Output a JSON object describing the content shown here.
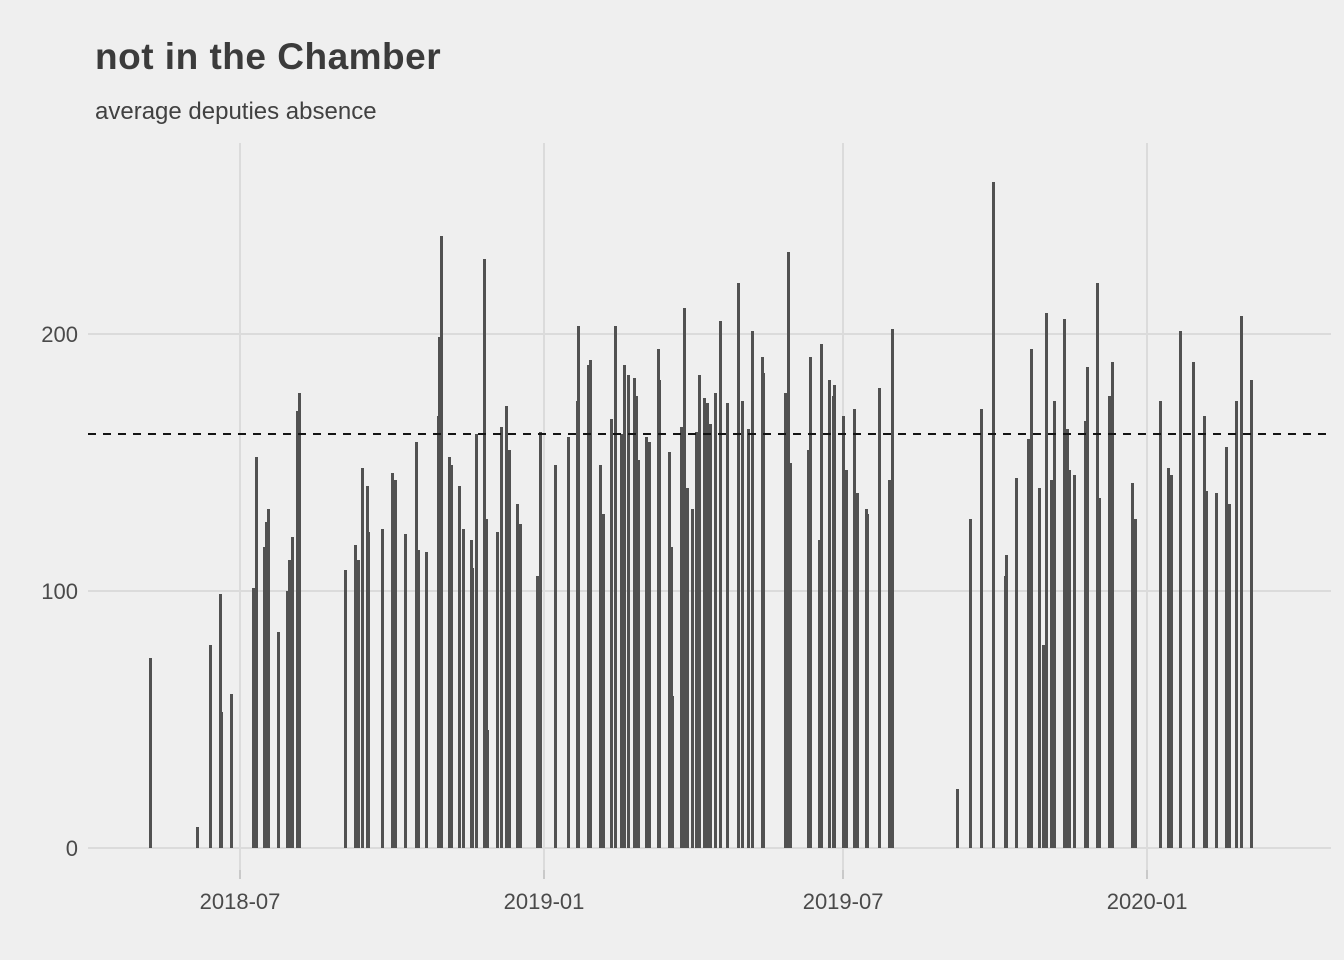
{
  "title": "not in the Chamber",
  "subtitle": "average deputies absence",
  "colors": {
    "background": "#efefef",
    "bar": "#515151",
    "gridline": "#dbdbdb",
    "tick": "#c9c9c9",
    "reference_line": "#141414",
    "title_text": "#3b3b3b",
    "axis_text": "#4a4a4a"
  },
  "chart_data": {
    "type": "bar",
    "title": "not in the Chamber",
    "subtitle": "average deputies absence",
    "xlabel": "",
    "ylabel": "",
    "grid": true,
    "legend": false,
    "ylim": [
      0,
      274
    ],
    "x_ticks": [
      {
        "label": "2018-07",
        "date": "2018-07-01"
      },
      {
        "label": "2019-01",
        "date": "2019-01-01"
      },
      {
        "label": "2019-07",
        "date": "2019-07-01"
      },
      {
        "label": "2020-01",
        "date": "2020-01-01"
      }
    ],
    "y_ticks": [
      {
        "label": "0",
        "value": 0
      },
      {
        "label": "100",
        "value": 100
      },
      {
        "label": "200",
        "value": 200
      }
    ],
    "reference_line": {
      "style": "dashed",
      "value": 161
    },
    "points": [
      [
        "2018-05-08",
        74
      ],
      [
        "2018-06-05",
        8
      ],
      [
        "2018-06-13",
        79
      ],
      [
        "2018-06-19",
        99
      ],
      [
        "2018-06-20",
        53
      ],
      [
        "2018-06-26",
        60
      ],
      [
        "2018-07-09",
        101
      ],
      [
        "2018-07-11",
        152
      ],
      [
        "2018-07-16",
        117
      ],
      [
        "2018-07-17",
        127
      ],
      [
        "2018-07-18",
        132
      ],
      [
        "2018-07-24",
        84
      ],
      [
        "2018-07-30",
        100
      ],
      [
        "2018-07-31",
        112
      ],
      [
        "2018-08-02",
        121
      ],
      [
        "2018-08-05",
        170
      ],
      [
        "2018-08-06",
        177
      ],
      [
        "2018-09-03",
        108
      ],
      [
        "2018-09-09",
        118
      ],
      [
        "2018-09-11",
        112
      ],
      [
        "2018-09-13",
        148
      ],
      [
        "2018-09-16",
        141
      ],
      [
        "2018-09-17",
        123
      ],
      [
        "2018-09-25",
        124
      ],
      [
        "2018-10-01",
        146
      ],
      [
        "2018-10-03",
        143
      ],
      [
        "2018-10-09",
        122
      ],
      [
        "2018-10-16",
        158
      ],
      [
        "2018-10-17",
        116
      ],
      [
        "2018-10-22",
        115
      ],
      [
        "2018-10-29",
        168
      ],
      [
        "2018-10-30",
        199
      ],
      [
        "2018-10-31",
        238
      ],
      [
        "2018-11-05",
        152
      ],
      [
        "2018-11-06",
        149
      ],
      [
        "2018-11-11",
        141
      ],
      [
        "2018-11-13",
        124
      ],
      [
        "2018-11-18",
        120
      ],
      [
        "2018-11-19",
        109
      ],
      [
        "2018-11-21",
        161
      ],
      [
        "2018-11-26",
        229
      ],
      [
        "2018-11-27",
        128
      ],
      [
        "2018-11-28",
        46
      ],
      [
        "2018-12-04",
        123
      ],
      [
        "2018-12-06",
        164
      ],
      [
        "2018-12-09",
        172
      ],
      [
        "2018-12-11",
        155
      ],
      [
        "2018-12-16",
        134
      ],
      [
        "2018-12-18",
        126
      ],
      [
        "2018-12-28",
        106
      ],
      [
        "2018-12-30",
        162
      ],
      [
        "2019-01-08",
        149
      ],
      [
        "2019-01-16",
        160
      ],
      [
        "2019-01-21",
        174
      ],
      [
        "2019-01-22",
        203
      ],
      [
        "2019-01-28",
        188
      ],
      [
        "2019-01-29",
        190
      ],
      [
        "2019-02-04",
        149
      ],
      [
        "2019-02-06",
        130
      ],
      [
        "2019-02-11",
        167
      ],
      [
        "2019-02-13",
        203
      ],
      [
        "2019-02-17",
        161
      ],
      [
        "2019-02-19",
        188
      ],
      [
        "2019-02-21",
        184
      ],
      [
        "2019-02-25",
        183
      ],
      [
        "2019-02-26",
        176
      ],
      [
        "2019-02-27",
        151
      ],
      [
        "2019-03-04",
        160
      ],
      [
        "2019-03-06",
        158
      ],
      [
        "2019-03-11",
        194
      ],
      [
        "2019-03-12",
        182
      ],
      [
        "2019-03-18",
        154
      ],
      [
        "2019-03-19",
        117
      ],
      [
        "2019-03-20",
        59
      ],
      [
        "2019-03-25",
        164
      ],
      [
        "2019-03-27",
        210
      ],
      [
        "2019-03-29",
        140
      ],
      [
        "2019-04-01",
        132
      ],
      [
        "2019-04-03",
        162
      ],
      [
        "2019-04-05",
        184
      ],
      [
        "2019-04-08",
        175
      ],
      [
        "2019-04-10",
        173
      ],
      [
        "2019-04-12",
        165
      ],
      [
        "2019-04-15",
        177
      ],
      [
        "2019-04-18",
        205
      ],
      [
        "2019-04-22",
        173
      ],
      [
        "2019-04-29",
        220
      ],
      [
        "2019-05-01",
        174
      ],
      [
        "2019-05-05",
        163
      ],
      [
        "2019-05-07",
        201
      ],
      [
        "2019-05-13",
        191
      ],
      [
        "2019-05-14",
        185
      ],
      [
        "2019-05-27",
        177
      ],
      [
        "2019-05-29",
        232
      ],
      [
        "2019-05-30",
        150
      ],
      [
        "2019-06-10",
        155
      ],
      [
        "2019-06-11",
        191
      ],
      [
        "2019-06-17",
        120
      ],
      [
        "2019-06-18",
        196
      ],
      [
        "2019-06-23",
        182
      ],
      [
        "2019-06-25",
        176
      ],
      [
        "2019-06-26",
        180
      ],
      [
        "2019-07-01",
        168
      ],
      [
        "2019-07-03",
        147
      ],
      [
        "2019-07-08",
        171
      ],
      [
        "2019-07-10",
        138
      ],
      [
        "2019-07-15",
        132
      ],
      [
        "2019-07-16",
        130
      ],
      [
        "2019-07-23",
        179
      ],
      [
        "2019-07-29",
        143
      ],
      [
        "2019-07-31",
        202
      ],
      [
        "2019-09-08",
        23
      ],
      [
        "2019-09-16",
        128
      ],
      [
        "2019-09-23",
        171
      ],
      [
        "2019-09-30",
        259
      ],
      [
        "2019-10-07",
        106
      ],
      [
        "2019-10-08",
        114
      ],
      [
        "2019-10-14",
        144
      ],
      [
        "2019-10-21",
        159
      ],
      [
        "2019-10-23",
        194
      ],
      [
        "2019-10-28",
        140
      ],
      [
        "2019-10-30",
        79
      ],
      [
        "2019-11-01",
        208
      ],
      [
        "2019-11-04",
        143
      ],
      [
        "2019-11-06",
        174
      ],
      [
        "2019-11-12",
        206
      ],
      [
        "2019-11-14",
        163
      ],
      [
        "2019-11-15",
        147
      ],
      [
        "2019-11-18",
        145
      ],
      [
        "2019-11-25",
        166
      ],
      [
        "2019-11-26",
        187
      ],
      [
        "2019-12-02",
        220
      ],
      [
        "2019-12-03",
        136
      ],
      [
        "2019-12-09",
        176
      ],
      [
        "2019-12-11",
        189
      ],
      [
        "2019-12-23",
        142
      ],
      [
        "2019-12-25",
        128
      ],
      [
        "2020-01-09",
        174
      ],
      [
        "2020-01-14",
        148
      ],
      [
        "2020-01-16",
        145
      ],
      [
        "2020-01-21",
        201
      ],
      [
        "2020-01-29",
        189
      ],
      [
        "2020-02-05",
        168
      ],
      [
        "2020-02-06",
        139
      ],
      [
        "2020-02-12",
        138
      ],
      [
        "2020-02-18",
        156
      ],
      [
        "2020-02-20",
        134
      ],
      [
        "2020-02-24",
        174
      ],
      [
        "2020-02-27",
        207
      ],
      [
        "2020-03-04",
        182
      ]
    ]
  }
}
